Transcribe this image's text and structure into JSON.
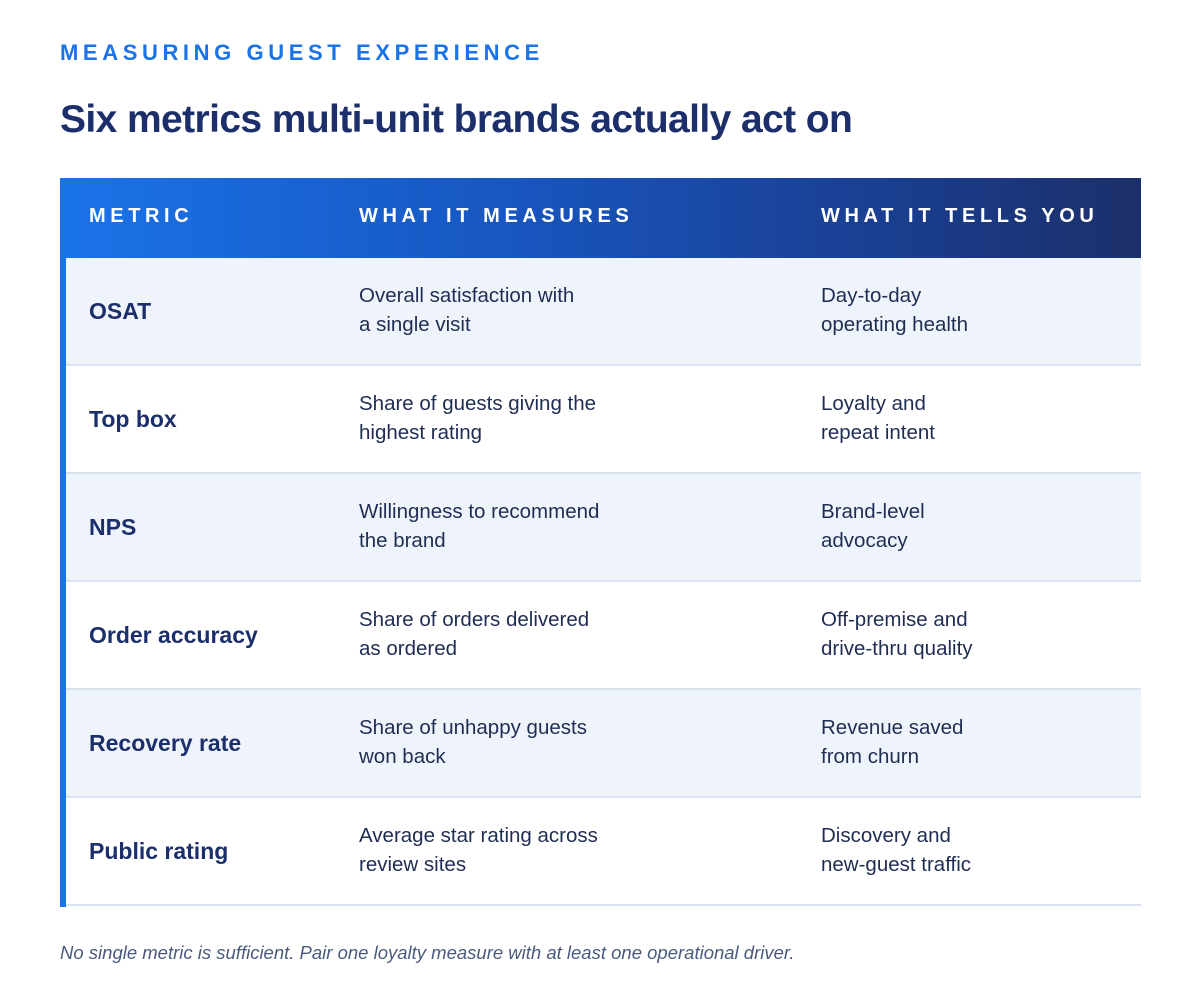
{
  "eyebrow": "MEASURING GUEST EXPERIENCE",
  "title": "Six metrics multi-unit brands actually act on",
  "table": {
    "headers": [
      "METRIC",
      "WHAT IT MEASURES",
      "WHAT IT TELLS YOU"
    ],
    "rows": [
      {
        "metric": "OSAT",
        "measures": [
          "Overall satisfaction with",
          "a single visit"
        ],
        "tells": [
          "Day-to-day",
          "operating health"
        ]
      },
      {
        "metric": "Top box",
        "measures": [
          "Share of guests giving the",
          "highest rating"
        ],
        "tells": [
          "Loyalty and",
          "repeat intent"
        ]
      },
      {
        "metric": "NPS",
        "measures": [
          "Willingness to recommend",
          "the brand"
        ],
        "tells": [
          "Brand-level",
          "advocacy"
        ]
      },
      {
        "metric": "Order accuracy",
        "measures": [
          "Share of orders delivered",
          "as ordered"
        ],
        "tells": [
          "Off-premise and",
          "drive-thru quality"
        ]
      },
      {
        "metric": "Recovery rate",
        "measures": [
          "Share of unhappy guests",
          "won back"
        ],
        "tells": [
          "Revenue saved",
          "from churn"
        ]
      },
      {
        "metric": "Public rating",
        "measures": [
          "Average star rating across",
          "review sites"
        ],
        "tells": [
          "Discovery and",
          "new-guest traffic"
        ]
      }
    ]
  },
  "footnote": "No single metric is sufficient. Pair one loyalty measure with at least one operational driver.",
  "colors": {
    "accent": "#1a73e8",
    "navy": "#1c2f6a",
    "row_alt": "#eff4fc"
  }
}
